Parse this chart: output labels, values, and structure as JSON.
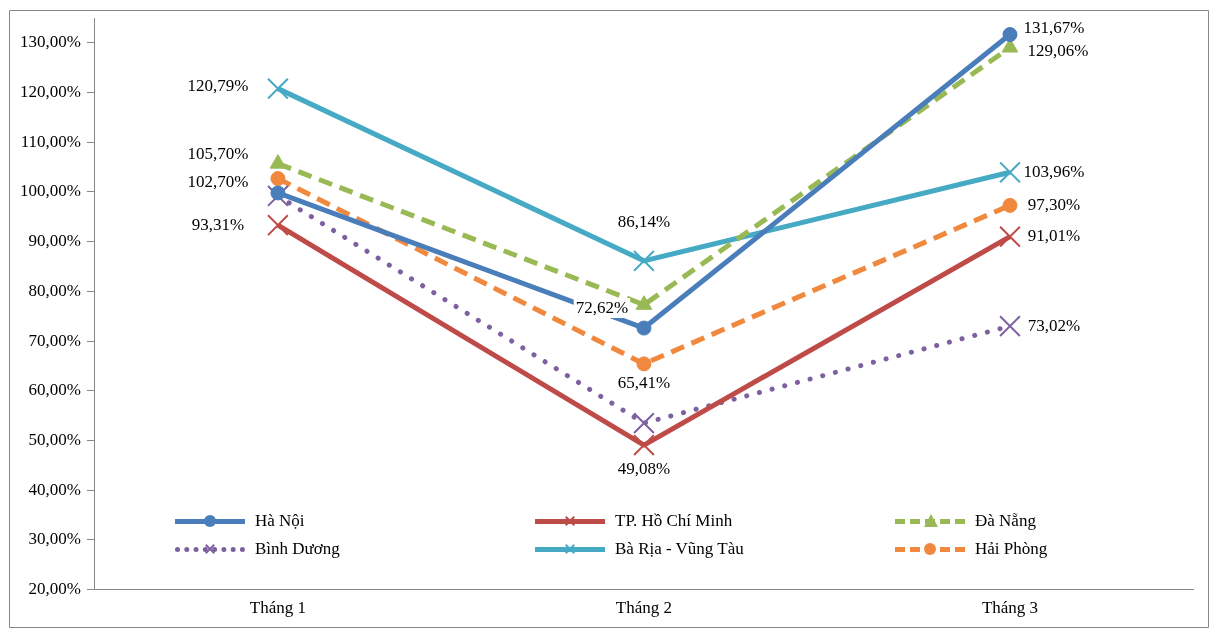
{
  "chart_data": {
    "type": "line",
    "categories": [
      "Tháng 1",
      "Tháng 2",
      "Tháng 3"
    ],
    "series": [
      {
        "name": "Hà Nội",
        "color": "#4a7ebb",
        "marker": "circle",
        "line_style": "solid",
        "values": [
          99.8,
          72.62,
          131.67
        ],
        "value_labels": [
          null,
          "72,62%",
          "131,67%"
        ]
      },
      {
        "name": "TP. Hồ Chí Minh",
        "color": "#be4b48",
        "marker": "cross",
        "line_style": "solid",
        "values": [
          93.31,
          49.08,
          91.01
        ],
        "value_labels": [
          "93,31%",
          "49,08%",
          "91,01%"
        ]
      },
      {
        "name": "Đà Nẵng",
        "color": "#98b954",
        "marker": "triangle",
        "line_style": "dashed",
        "values": [
          105.7,
          77.3,
          129.06
        ],
        "value_labels": [
          "105,70%",
          null,
          "129,06%"
        ]
      },
      {
        "name": "Bình Dương",
        "color": "#7d60a0",
        "marker": "cross",
        "line_style": "dotted",
        "values": [
          99.2,
          53.5,
          73.02
        ],
        "value_labels": [
          null,
          null,
          "73,02%"
        ]
      },
      {
        "name": "Bà Rịa - Vũng Tàu",
        "color": "#46aac5",
        "marker": "cross",
        "line_style": "solid",
        "values": [
          120.79,
          86.14,
          103.96
        ],
        "value_labels": [
          "120,79%",
          "86,14%",
          "103,96%"
        ]
      },
      {
        "name": "Hải Phòng",
        "color": "#f0883e",
        "marker": "circle",
        "line_style": "dashed",
        "values": [
          102.7,
          65.41,
          97.3
        ],
        "value_labels": [
          "102,70%",
          "65,41%",
          "97,30%"
        ]
      }
    ],
    "ylim": [
      20,
      135
    ],
    "yticks": [
      {
        "value": 20,
        "label": "20,00%"
      },
      {
        "value": 30,
        "label": "30,00%"
      },
      {
        "value": 40,
        "label": "40,00%"
      },
      {
        "value": 50,
        "label": "50,00%"
      },
      {
        "value": 60,
        "label": "60,00%"
      },
      {
        "value": 70,
        "label": "70,00%"
      },
      {
        "value": 80,
        "label": "80,00%"
      },
      {
        "value": 90,
        "label": "90,00%"
      },
      {
        "value": 100,
        "label": "100,00%"
      },
      {
        "value": 110,
        "label": "110,00%"
      },
      {
        "value": 120,
        "label": "120,00%"
      },
      {
        "value": 130,
        "label": "130,00%"
      }
    ],
    "grid": false,
    "legend": "bottom"
  }
}
